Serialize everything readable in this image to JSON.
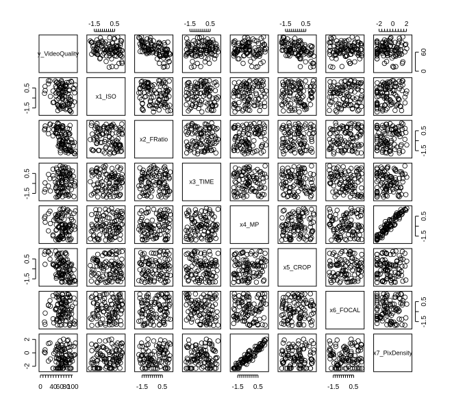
{
  "chart_data": {
    "type": "scatter-matrix",
    "variables": [
      "y_VideoQuality",
      "x1_ISO",
      "x2_FRatio",
      "x3_TIME",
      "x4_MP",
      "x5_CROP",
      "x6_FOCAL",
      "x7_PixDensity"
    ],
    "n_points": 100,
    "axes": {
      "y_VideoQuality": {
        "range": [
          0,
          110
        ],
        "ticks": [
          0,
          40,
          60,
          80,
          100
        ],
        "tick_labels": [
          "0",
          "40",
          "60",
          "80",
          "100"
        ],
        "right_tick_labels": [
          "0",
          "60"
        ]
      },
      "x1_ISO": {
        "range": [
          -2.1,
          1.4
        ],
        "ticks": [
          -1.5,
          -0.5,
          0.5
        ],
        "tick_labels": [
          "-1.5",
          "",
          "0.5"
        ]
      },
      "x2_FRatio": {
        "range": [
          -2.1,
          1.4
        ],
        "ticks": [
          -1.5,
          -0.5,
          0.5
        ],
        "tick_labels": [
          "-1.5",
          "",
          "0.5"
        ]
      },
      "x3_TIME": {
        "range": [
          -2.1,
          1.4
        ],
        "ticks": [
          -1.5,
          -0.5,
          0.5
        ],
        "tick_labels": [
          "-1.5",
          "",
          "0.5"
        ]
      },
      "x4_MP": {
        "range": [
          -2.1,
          1.4
        ],
        "ticks": [
          -1.5,
          -0.5,
          0.5
        ],
        "tick_labels": [
          "-1.5",
          "",
          "0.5"
        ]
      },
      "x5_CROP": {
        "range": [
          -2.1,
          1.4
        ],
        "ticks": [
          -1.5,
          -0.5,
          0.5
        ],
        "tick_labels": [
          "-1.5",
          "",
          "0.5"
        ]
      },
      "x6_FOCAL": {
        "range": [
          -2.1,
          1.4
        ],
        "ticks": [
          -1.5,
          -0.5,
          0.5
        ],
        "tick_labels": [
          "-1.5",
          "",
          "0.5"
        ]
      },
      "x7_PixDensity": {
        "range": [
          -2.6,
          2.6
        ],
        "ticks": [
          -2,
          0,
          2
        ],
        "tick_labels": [
          "-2",
          "0",
          "2"
        ]
      }
    },
    "top_axis_labels": [
      "-1.5",
      "0.5",
      "-1.5",
      "0.5",
      "-1.5",
      "0.5",
      "-2",
      "0",
      "2"
    ],
    "left_axis_labels": [
      "-1.5",
      "0.5",
      "-1.5",
      "0.5",
      "-1.5",
      "0.5",
      "-2",
      "0",
      "2"
    ],
    "bottom_axis_labels": [
      "0",
      "40",
      "60",
      "100",
      "-1.5",
      "0.5",
      "-1.5",
      "0.5",
      "-1.5",
      "0.5"
    ],
    "right_axis_labels": [
      "0",
      "60",
      "-1.5",
      "0.5",
      "-1.5",
      "0.5",
      "-1.5",
      "0.5"
    ],
    "relationships": [
      {
        "pair": [
          "y_VideoQuality",
          "x1_ISO"
        ],
        "trend": "negative"
      },
      {
        "pair": [
          "y_VideoQuality",
          "x2_FRatio"
        ],
        "trend": "negative"
      },
      {
        "pair": [
          "y_VideoQuality",
          "x5_CROP"
        ],
        "trend": "negative"
      },
      {
        "pair": [
          "x4_MP",
          "x7_PixDensity"
        ],
        "trend": "strong positive"
      },
      {
        "pair": [
          "x5_CROP",
          "x7_PixDensity"
        ],
        "trend": "V-shaped"
      }
    ],
    "grid": false,
    "legend": "none",
    "title": "",
    "xlabel": "",
    "ylabel": ""
  }
}
